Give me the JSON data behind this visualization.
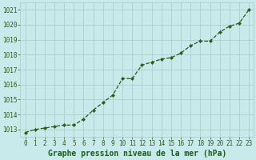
{
  "x": [
    0,
    1,
    2,
    3,
    4,
    5,
    6,
    7,
    8,
    9,
    10,
    11,
    12,
    13,
    14,
    15,
    16,
    17,
    18,
    19,
    20,
    21,
    22,
    23
  ],
  "y": [
    1012.8,
    1013.0,
    1013.1,
    1013.2,
    1013.3,
    1013.3,
    1013.7,
    1014.3,
    1014.8,
    1015.3,
    1016.4,
    1016.4,
    1017.3,
    1017.5,
    1017.7,
    1017.8,
    1018.1,
    1018.6,
    1018.9,
    1018.9,
    1019.5,
    1019.9,
    1020.1,
    1021.0
  ],
  "ylim": [
    1012.5,
    1021.5
  ],
  "yticks": [
    1013,
    1014,
    1015,
    1016,
    1017,
    1018,
    1019,
    1020,
    1021
  ],
  "xticks": [
    0,
    1,
    2,
    3,
    4,
    5,
    6,
    7,
    8,
    9,
    10,
    11,
    12,
    13,
    14,
    15,
    16,
    17,
    18,
    19,
    20,
    21,
    22,
    23
  ],
  "line_color": "#2d5a1b",
  "marker_color": "#2d5a1b",
  "bg_color": "#c8eaea",
  "grid_color": "#a8c8c8",
  "xlabel": "Graphe pression niveau de la mer (hPa)",
  "xlabel_color": "#1a5c1a",
  "tick_color": "#2d5a1b",
  "tick_fontsize": 5.5,
  "xlabel_fontsize": 7.0
}
